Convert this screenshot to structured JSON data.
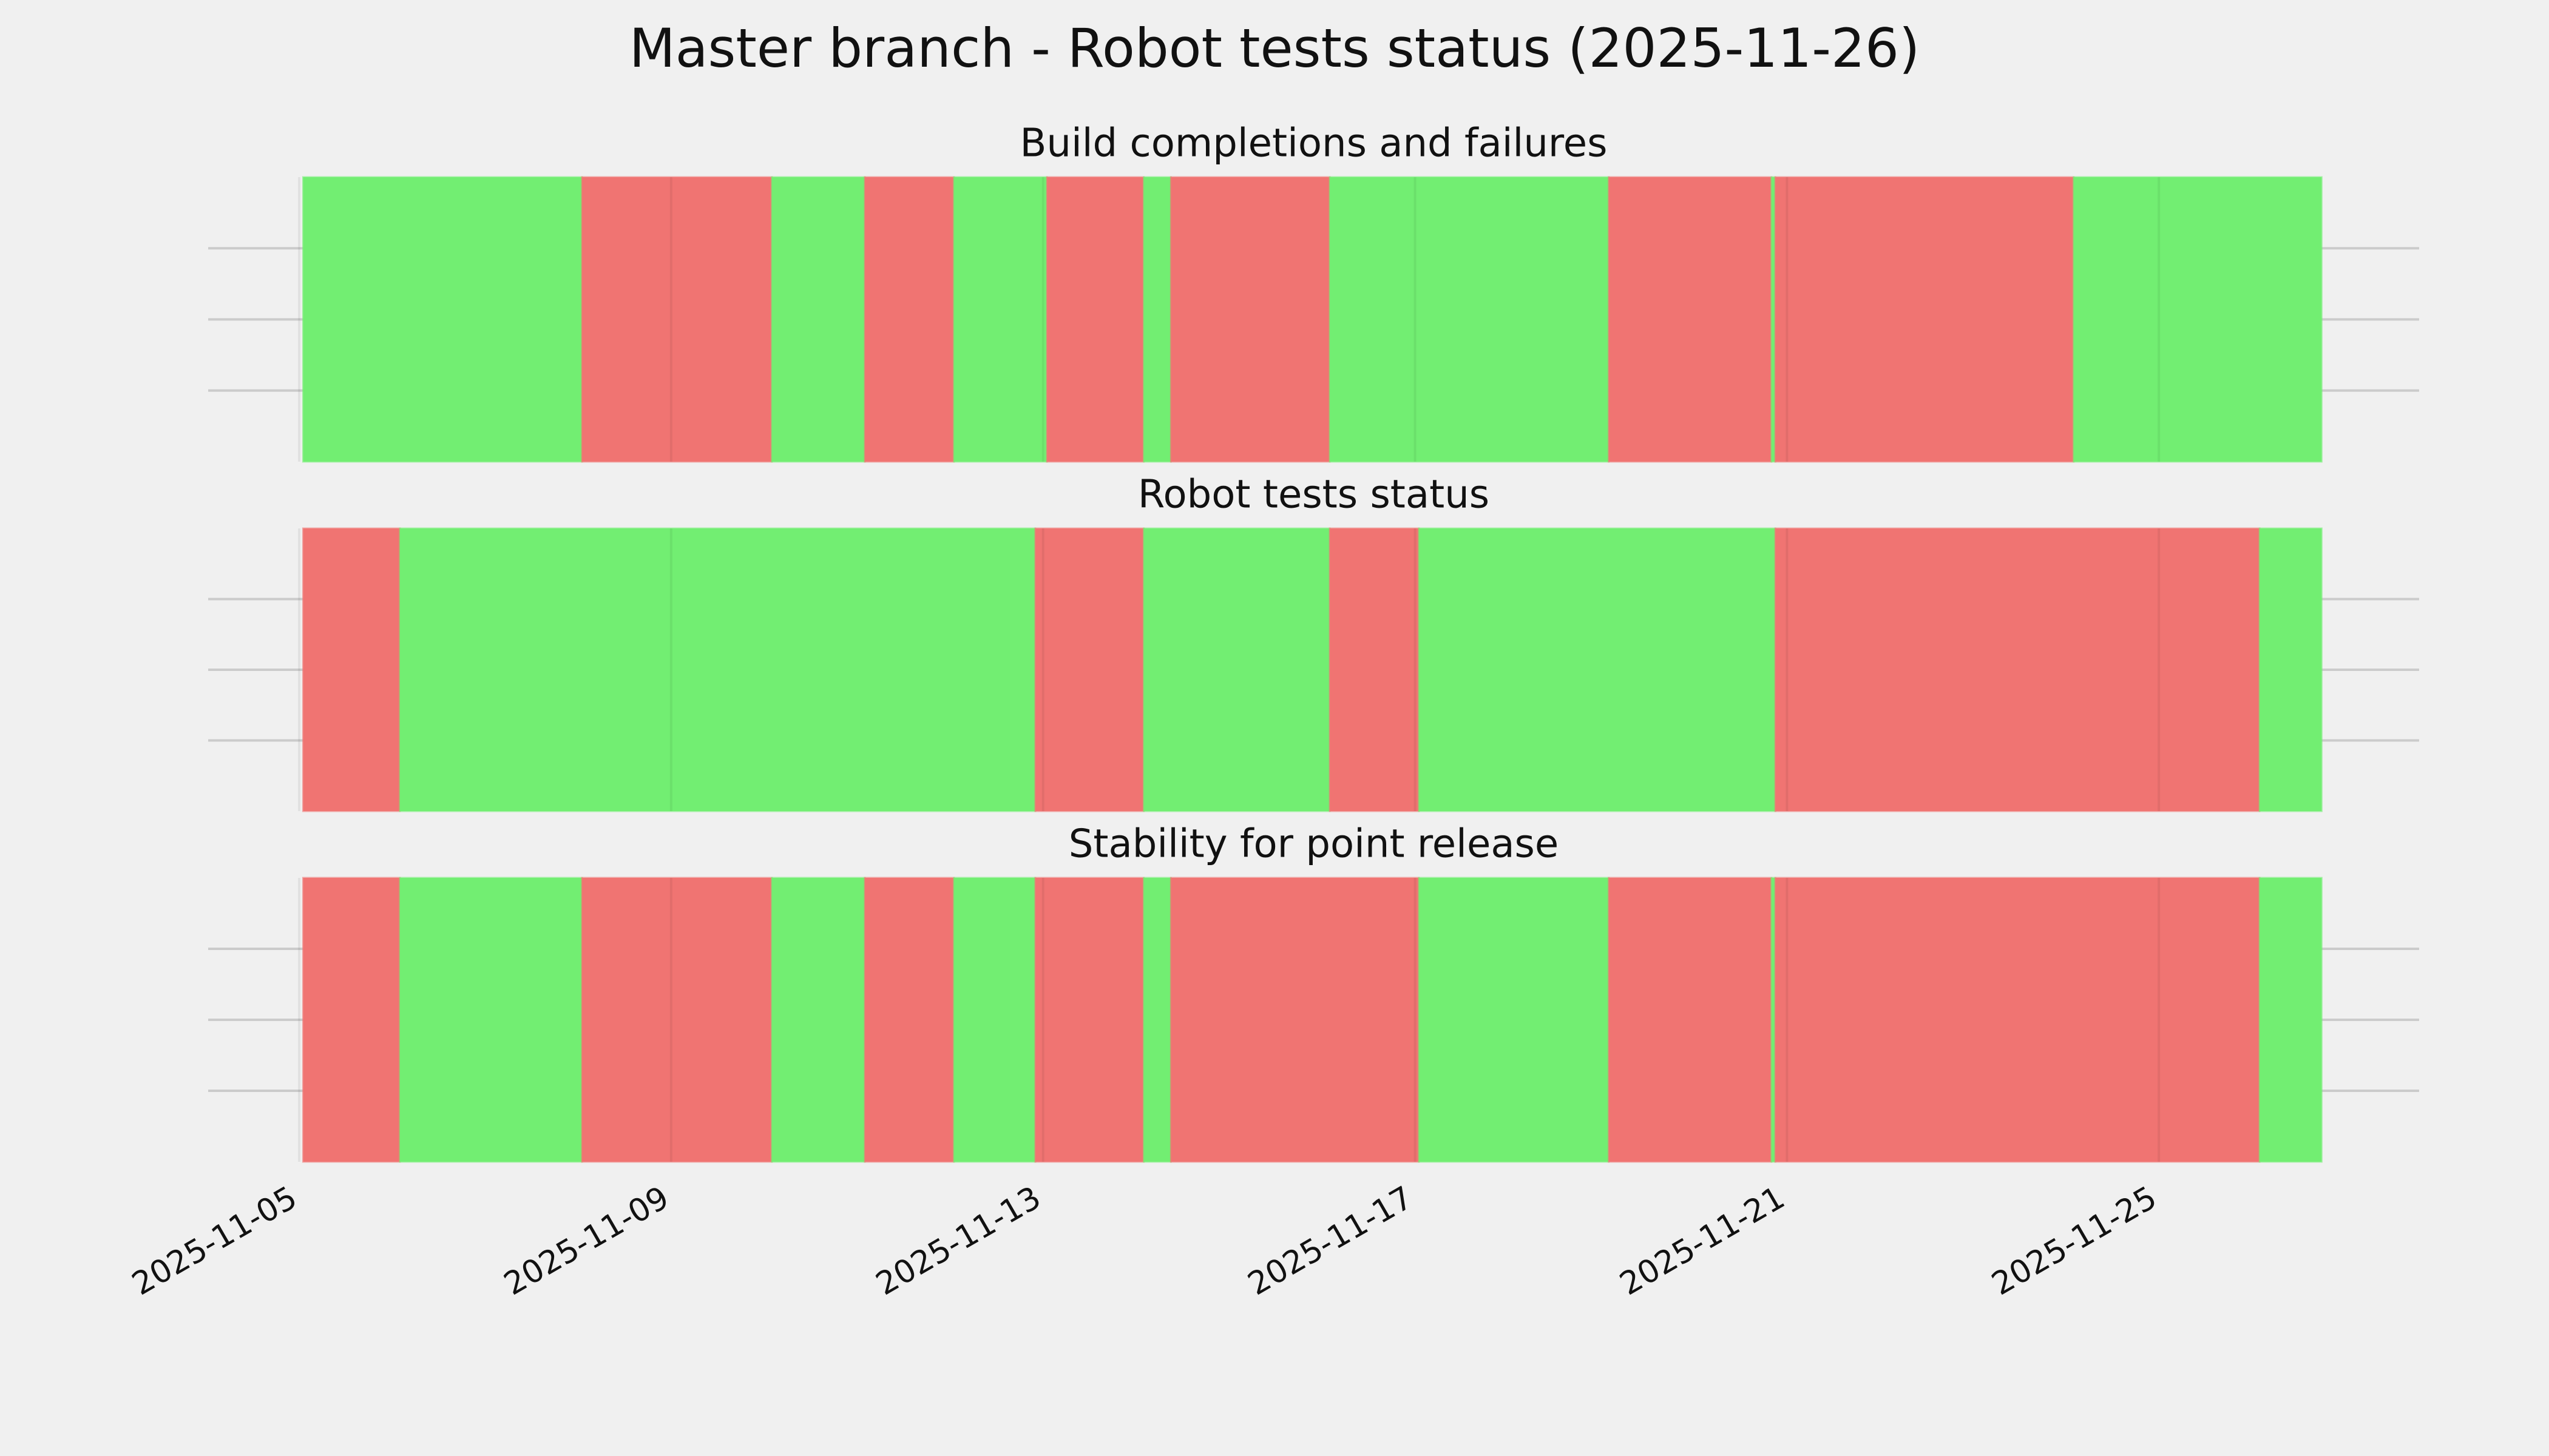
{
  "title": "Master branch - Robot tests status (2025-11-26)",
  "chart_data": [
    {
      "type": "timeline",
      "title": "Build completions and failures",
      "x": [
        "2025-11-05 01:00",
        "2025-11-08 01:00",
        "2025-11-10 02:00",
        "2025-11-11 02:00",
        "2025-11-12 01:00",
        "2025-11-13 01:00",
        "2025-11-14 02:00",
        "2025-11-14 09:00",
        "2025-11-16 02:00",
        "2025-11-19 02:00",
        "2025-11-20 20:00",
        "2025-11-20 21:00",
        "2025-11-24 02:00",
        "2025-11-26 18:00"
      ],
      "colors": [
        "#76f576",
        "#f77876",
        "#76f576",
        "#f77876",
        "#76f576",
        "#f77876",
        "#76f576",
        "#f77876",
        "#76f576",
        "#f77876",
        "#76f576",
        "#f77876",
        "#76f576"
      ],
      "xlim": [
        "2025-11-04 00:30",
        "2025-11-27 19:10"
      ],
      "xticks": [
        "2025-11-05",
        "2025-11-09",
        "2025-11-13",
        "2025-11-17",
        "2025-11-21",
        "2025-11-25"
      ],
      "ylim": [
        0,
        1
      ],
      "yticks": [
        0.25,
        0.5,
        0.75
      ],
      "grid": true
    },
    {
      "type": "timeline",
      "title": "Robot tests status",
      "x": [
        "2025-11-05 01:00",
        "2025-11-06 02:00",
        "2025-11-12 22:00",
        "2025-11-14 02:00",
        "2025-11-16 02:00",
        "2025-11-17 01:00",
        "2025-11-20 21:00",
        "2025-11-26 02:00",
        "2025-11-26 18:00"
      ],
      "colors": [
        "#f77876",
        "#76f576",
        "#f77876",
        "#76f576",
        "#f77876",
        "#76f576",
        "#f77876",
        "#76f576"
      ],
      "xlim": [
        "2025-11-04 00:30",
        "2025-11-27 19:10"
      ],
      "xticks": [
        "2025-11-05",
        "2025-11-09",
        "2025-11-13",
        "2025-11-17",
        "2025-11-21",
        "2025-11-25"
      ],
      "ylim": [
        0,
        1
      ],
      "yticks": [
        0.25,
        0.5,
        0.75
      ],
      "grid": true
    },
    {
      "type": "timeline",
      "title": "Stability for point release",
      "x": [
        "2025-11-05 01:00",
        "2025-11-06 02:00",
        "2025-11-08 01:00",
        "2025-11-10 02:00",
        "2025-11-11 02:00",
        "2025-11-12 01:00",
        "2025-11-12 22:00",
        "2025-11-14 02:00",
        "2025-11-14 09:00",
        "2025-11-17 01:00",
        "2025-11-19 02:00",
        "2025-11-20 20:00",
        "2025-11-20 21:00",
        "2025-11-26 02:00",
        "2025-11-26 18:00"
      ],
      "colors": [
        "#f77876",
        "#76f576",
        "#f77876",
        "#76f576",
        "#f77876",
        "#76f576",
        "#f77876",
        "#76f576",
        "#f77876",
        "#76f576",
        "#f77876",
        "#76f576",
        "#f77876",
        "#76f576"
      ],
      "xlim": [
        "2025-11-04 00:30",
        "2025-11-27 19:10"
      ],
      "xticks": [
        "2025-11-05",
        "2025-11-09",
        "2025-11-13",
        "2025-11-17",
        "2025-11-21",
        "2025-11-25"
      ],
      "ylim": [
        0,
        1
      ],
      "yticks": [
        0.25,
        0.5,
        0.75
      ],
      "grid": true
    }
  ]
}
